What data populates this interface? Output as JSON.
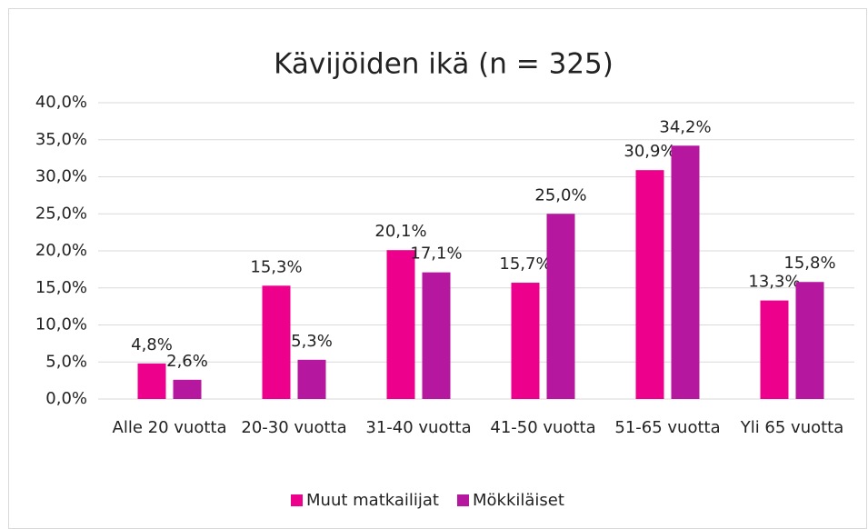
{
  "chart_data": {
    "type": "bar",
    "title": "Kävijöiden ikä (n = 325)",
    "categories": [
      "Alle 20 vuotta",
      "20-30 vuotta",
      "31-40 vuotta",
      "41-50 vuotta",
      "51-65 vuotta",
      "Yli 65 vuotta"
    ],
    "series": [
      {
        "name": "Muut matkailijat",
        "color": "#ec008c",
        "values": [
          4.8,
          15.3,
          20.1,
          15.7,
          30.9,
          13.3
        ],
        "value_labels": [
          "4,8%",
          "15,3%",
          "20,1%",
          "15,7%",
          "30,9%",
          "13,3%"
        ]
      },
      {
        "name": "Mökkiläiset",
        "color": "#b5179e",
        "values": [
          2.6,
          5.3,
          17.1,
          25.0,
          34.2,
          15.8
        ],
        "value_labels": [
          "2,6%",
          "5,3%",
          "17,1%",
          "25,0%",
          "34,2%",
          "15,8%"
        ]
      }
    ],
    "ylim": [
      0,
      40
    ],
    "yticks": [
      {
        "value": 0,
        "label": "0,0%"
      },
      {
        "value": 5,
        "label": "5,0%"
      },
      {
        "value": 10,
        "label": "10,0%"
      },
      {
        "value": 15,
        "label": "15,0%"
      },
      {
        "value": 20,
        "label": "20,0%"
      },
      {
        "value": 25,
        "label": "25,0%"
      },
      {
        "value": 30,
        "label": "30,0%"
      },
      {
        "value": 35,
        "label": "35,0%"
      },
      {
        "value": 40,
        "label": "40,0%"
      }
    ],
    "grid": true,
    "legend": "bottom"
  }
}
